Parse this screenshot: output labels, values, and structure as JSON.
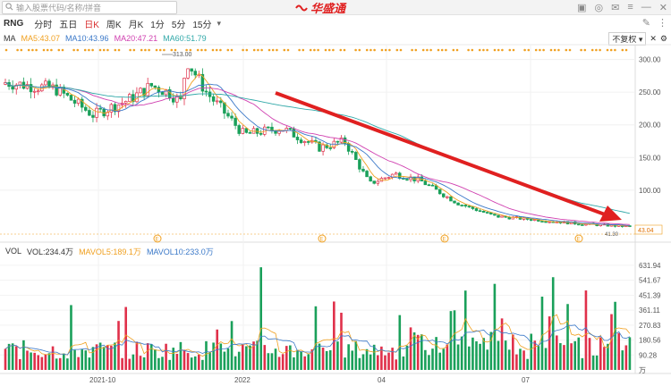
{
  "search": {
    "placeholder": "输入股票代码/名称/拼音"
  },
  "brand": {
    "name": "华盛通",
    "color": "#e02020"
  },
  "toolbar": {
    "code": "RNG",
    "periods": [
      {
        "label": "分时",
        "active": false
      },
      {
        "label": "五日",
        "active": false
      },
      {
        "label": "日K",
        "active": true
      },
      {
        "label": "周K",
        "active": false
      },
      {
        "label": "月K",
        "active": false
      },
      {
        "label": "1分",
        "active": false
      },
      {
        "label": "5分",
        "active": false
      },
      {
        "label": "15分",
        "active": false
      }
    ]
  },
  "ma": {
    "label": "MA",
    "ma5": "MA5:43.07",
    "ma10": "MA10:43.96",
    "ma20": "MA20:47.21",
    "ma60": "MA60:51.79",
    "adjust": "不复权"
  },
  "price_chart": {
    "high_marker": "313.00",
    "low_marker": "41.30",
    "last_price_tag": "43.04",
    "y_ticks": [
      "300.00",
      "250.00",
      "200.00",
      "150.00",
      "100.00"
    ]
  },
  "vol": {
    "label": "VOL",
    "vol": "VOL:234.4万",
    "mavol5": "MAVOL5:189.1万",
    "mavol10": "MAVOL10:233.0万",
    "y_ticks": [
      "631.94",
      "541.67",
      "451.39",
      "361.11",
      "270.83",
      "180.56",
      "90.28",
      "万"
    ]
  },
  "x_axis": [
    "2021-10",
    "2022",
    "04",
    "07"
  ],
  "colors": {
    "up": "#e0304a",
    "down": "#1aa05a",
    "ma5": "#f0a020",
    "ma10": "#3a78c8",
    "ma20": "#d040b0",
    "ma60": "#30a8a8",
    "arrow": "#e02020"
  }
}
